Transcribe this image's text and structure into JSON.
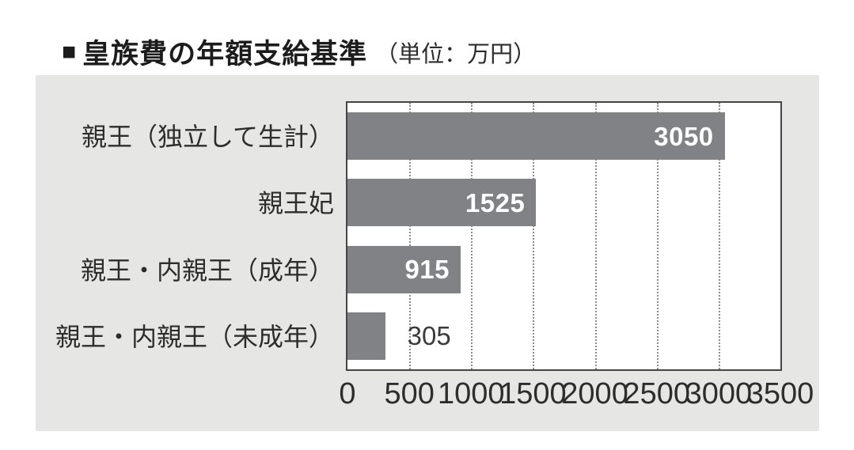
{
  "header": {
    "marker": "■",
    "title": "皇族費の年額支給基準",
    "unit_note": "（単位：万円）"
  },
  "chart_data": {
    "type": "bar",
    "orientation": "horizontal",
    "title": "皇族費の年額支給基準",
    "unit": "万円",
    "categories": [
      "親王（独立して生計）",
      "親王妃",
      "親王・内親王（成年）",
      "親王・内親王（未成年）"
    ],
    "values": [
      3050,
      1525,
      915,
      305
    ],
    "value_label_position": [
      "inside",
      "inside",
      "inside",
      "outside"
    ],
    "xlim": [
      0,
      3500
    ],
    "xticks": [
      0,
      500,
      1000,
      1500,
      2000,
      2500,
      3000,
      3500
    ],
    "xlabel": "",
    "ylabel": "",
    "grid": "vertical-dotted",
    "legend": "none",
    "colors": {
      "bar": "#808285",
      "value_inside": "#ffffff",
      "value_outside": "#3b3b3b",
      "panel_background": "#e6e6e5",
      "plot_background": "#ffffff",
      "plot_border": "#454545",
      "gridline": "#8c8c8c",
      "text": "#2d2d2d"
    }
  }
}
